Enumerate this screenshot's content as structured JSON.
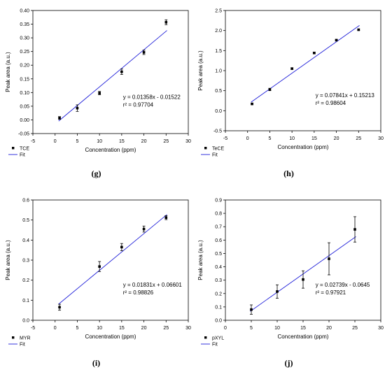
{
  "figure": {
    "panels": [
      "(g)",
      "(h)",
      "(i)",
      "(j)"
    ]
  },
  "chart_data": [
    {
      "type": "scatter",
      "panel_label": "(g)",
      "xlabel": "Concentration (ppm)",
      "ylabel": "Peak area (a.u.)",
      "xlim": [
        -5,
        30
      ],
      "ylim": [
        -0.05,
        0.4
      ],
      "xticks": [
        "-5",
        "0",
        "5",
        "10",
        "15",
        "20",
        "25",
        "30"
      ],
      "yticks": [
        "-0.05",
        "0.00",
        "0.05",
        "0.10",
        "0.15",
        "0.20",
        "0.25",
        "0.30",
        "0.35",
        "0.40"
      ],
      "grid": false,
      "series": [
        {
          "name": "TCE",
          "x": [
            1,
            5,
            10,
            15,
            20,
            25
          ],
          "y": [
            0.007,
            0.043,
            0.098,
            0.176,
            0.247,
            0.357
          ],
          "err": [
            0.005,
            0.012,
            0.006,
            0.01,
            0.008,
            0.009
          ]
        }
      ],
      "fit": {
        "name": "Fit",
        "slope": 0.01358,
        "intercept": -0.01522,
        "x_range": [
          1,
          25
        ]
      },
      "annotations": [
        "y = 0.01358x - 0.01522",
        "r² = 0.97704"
      ],
      "legend_position": "bottom-left, below axes",
      "colors": {
        "points": "#000000",
        "fit": "#1f1fd9"
      }
    },
    {
      "type": "scatter",
      "panel_label": "(h)",
      "xlabel": "Concentration (ppm)",
      "ylabel": "Peak area (a.u.)",
      "xlim": [
        -5,
        30
      ],
      "ylim": [
        -0.5,
        2.5
      ],
      "xticks": [
        "-5",
        "0",
        "5",
        "10",
        "15",
        "20",
        "25",
        "30"
      ],
      "yticks": [
        "-0.5",
        "0.0",
        "0.5",
        "1.0",
        "1.5",
        "2.0",
        "2.5"
      ],
      "grid": false,
      "series": [
        {
          "name": "TeCE",
          "x": [
            1,
            5,
            10,
            15,
            20,
            25
          ],
          "y": [
            0.17,
            0.53,
            1.05,
            1.44,
            1.76,
            2.02
          ],
          "err": [
            0.02,
            0.03,
            0.02,
            0.02,
            0.02,
            0.02
          ]
        }
      ],
      "fit": {
        "name": "Fit",
        "slope": 0.07841,
        "intercept": 0.15213,
        "x_range": [
          1,
          25
        ]
      },
      "annotations": [
        "y = 0.07841x + 0.15213",
        "r² = 0.98604"
      ],
      "legend_position": "bottom-left, below axes",
      "colors": {
        "points": "#000000",
        "fit": "#1f1fd9"
      }
    },
    {
      "type": "scatter",
      "panel_label": "(i)",
      "xlabel": "Concentration (ppm)",
      "ylabel": "Peak area (a.u.)",
      "xlim": [
        -5,
        30
      ],
      "ylim": [
        0.0,
        0.6
      ],
      "xticks": [
        "-5",
        "0",
        "5",
        "10",
        "15",
        "20",
        "25",
        "30"
      ],
      "yticks": [
        "0.0",
        "0.1",
        "0.2",
        "0.3",
        "0.4",
        "0.5",
        "0.6"
      ],
      "grid": false,
      "series": [
        {
          "name": "MYR",
          "x": [
            1,
            10,
            15,
            20,
            25
          ],
          "y": [
            0.065,
            0.268,
            0.365,
            0.455,
            0.512
          ],
          "err": [
            0.015,
            0.025,
            0.018,
            0.015,
            0.01
          ]
        }
      ],
      "fit": {
        "name": "Fit",
        "slope": 0.01831,
        "intercept": 0.06601,
        "x_range": [
          1,
          25
        ]
      },
      "annotations": [
        "y = 0.01831x + 0.06601",
        "r² = 0.98826"
      ],
      "legend_position": "bottom-left, below axes",
      "colors": {
        "points": "#000000",
        "fit": "#1f1fd9"
      }
    },
    {
      "type": "scatter",
      "panel_label": "(j)",
      "xlabel": "Concentration (ppm)",
      "ylabel": "Peak area (a.u.)",
      "xlim": [
        0,
        30
      ],
      "ylim": [
        0.0,
        0.9
      ],
      "xticks": [
        "0",
        "5",
        "10",
        "15",
        "20",
        "25",
        "30"
      ],
      "yticks": [
        "0.0",
        "0.1",
        "0.2",
        "0.3",
        "0.4",
        "0.5",
        "0.6",
        "0.7",
        "0.8",
        "0.9"
      ],
      "grid": false,
      "series": [
        {
          "name": "pXYL",
          "x": [
            5,
            10,
            15,
            20,
            25
          ],
          "y": [
            0.08,
            0.215,
            0.305,
            0.46,
            0.68
          ],
          "err": [
            0.035,
            0.05,
            0.065,
            0.12,
            0.095
          ]
        }
      ],
      "fit": {
        "name": "Fit",
        "slope": 0.02739,
        "intercept": -0.0645,
        "x_range": [
          5,
          25
        ]
      },
      "annotations": [
        "y = 0.02739x - 0.0645",
        "r² = 0.97921"
      ],
      "legend_position": "bottom-left, below axes",
      "colors": {
        "points": "#000000",
        "fit": "#1f1fd9"
      }
    }
  ]
}
